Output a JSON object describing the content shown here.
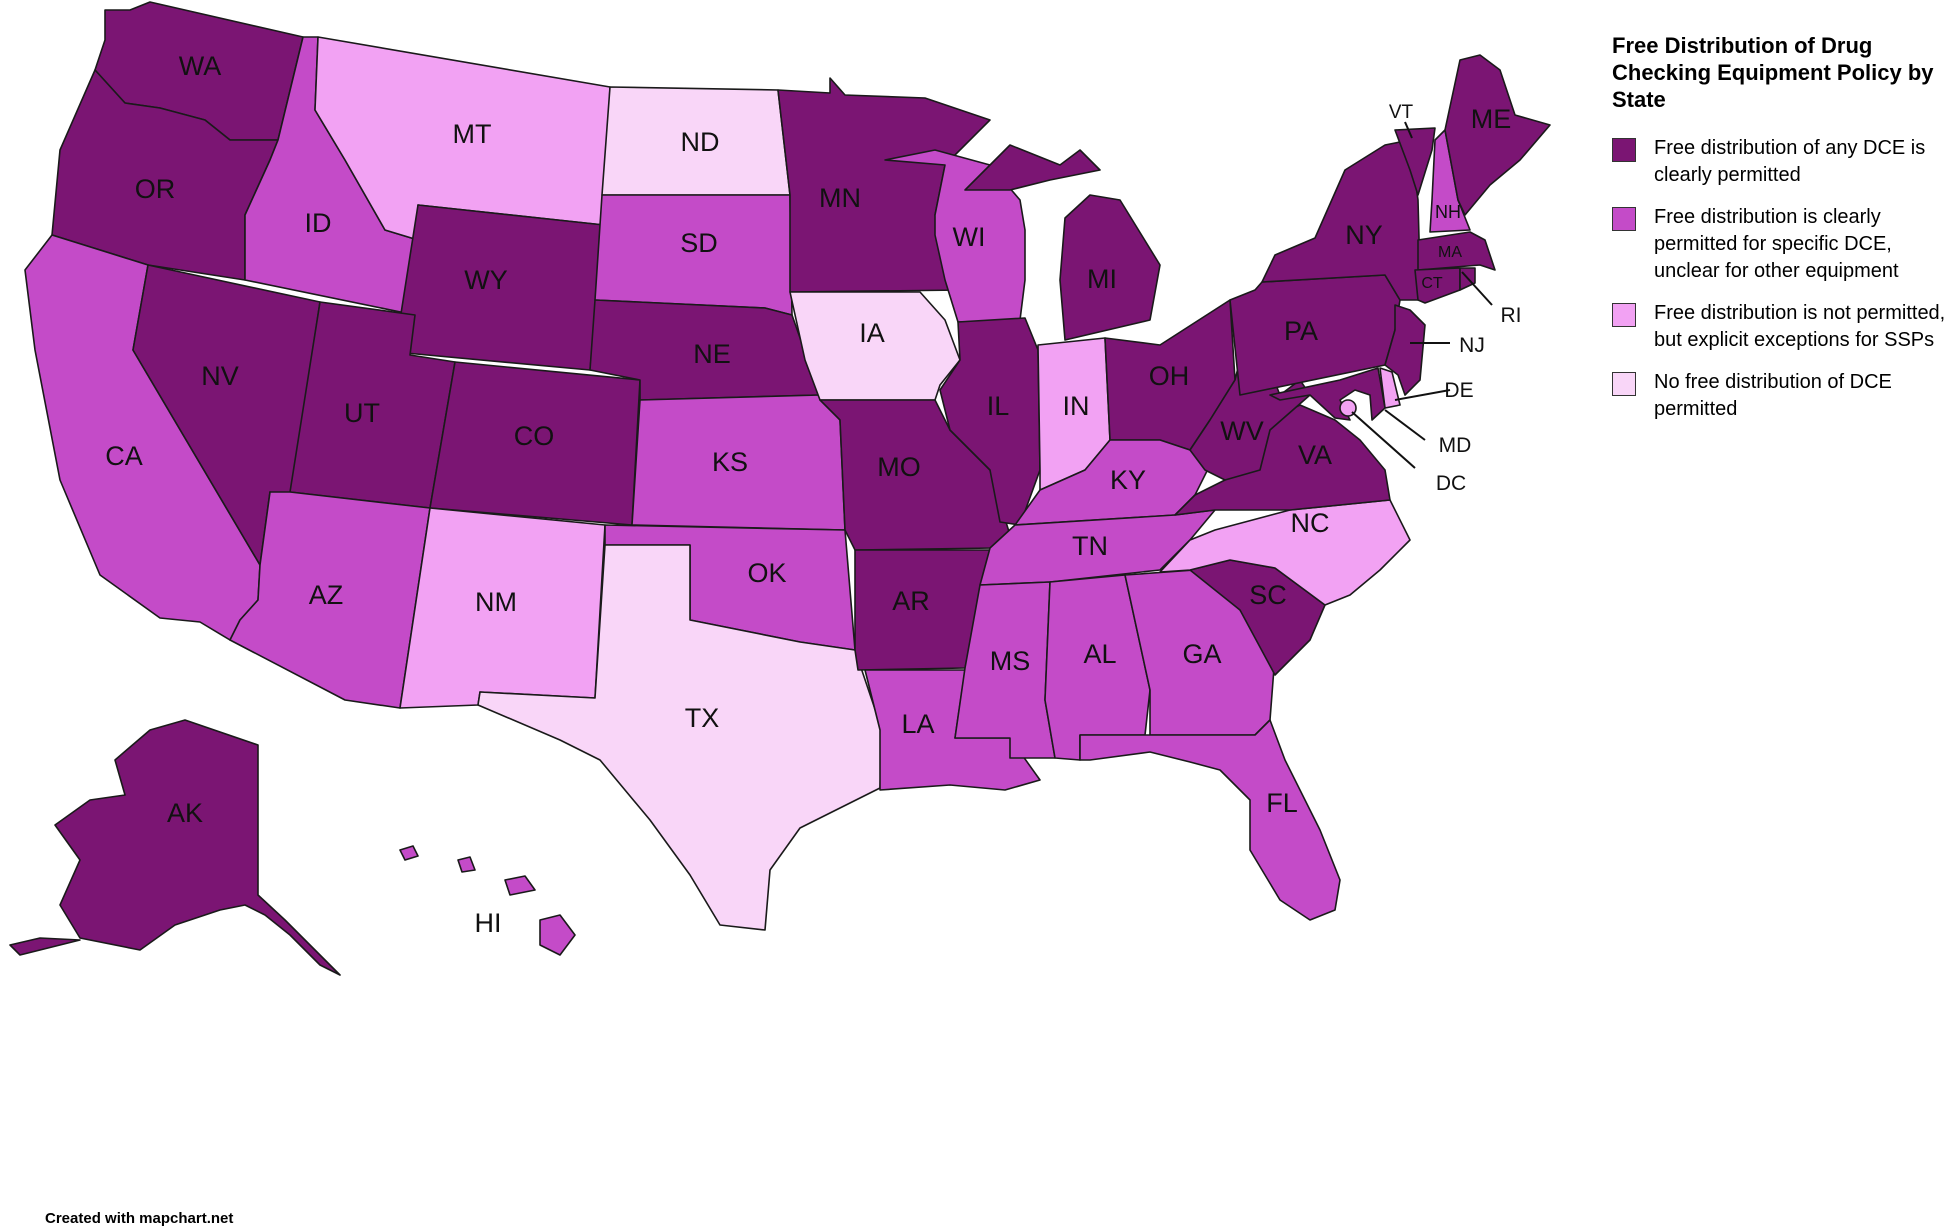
{
  "legend": {
    "title": "Free Distribution of Drug Checking Equipment Policy by State",
    "items": [
      {
        "key": "any",
        "label": "Free distribution of any DCE is clearly permitted",
        "color": "#7b1573"
      },
      {
        "key": "specific",
        "label": "Free distribution is clearly permitted for specific DCE, unclear for other equipment",
        "color": "#c44bc8"
      },
      {
        "key": "ssp",
        "label": "Free distribution is not permitted, but explicit exceptions for SSPs",
        "color": "#f2a2f3"
      },
      {
        "key": "none",
        "label": "No free distribution of DCE permitted",
        "color": "#f9d6f8"
      }
    ]
  },
  "states": [
    {
      "abbr": "WA",
      "category": "any"
    },
    {
      "abbr": "OR",
      "category": "any"
    },
    {
      "abbr": "CA",
      "category": "specific"
    },
    {
      "abbr": "ID",
      "category": "specific"
    },
    {
      "abbr": "NV",
      "category": "any"
    },
    {
      "abbr": "MT",
      "category": "ssp"
    },
    {
      "abbr": "WY",
      "category": "any"
    },
    {
      "abbr": "UT",
      "category": "any"
    },
    {
      "abbr": "CO",
      "category": "any"
    },
    {
      "abbr": "AZ",
      "category": "specific"
    },
    {
      "abbr": "NM",
      "category": "ssp"
    },
    {
      "abbr": "ND",
      "category": "none"
    },
    {
      "abbr": "SD",
      "category": "specific"
    },
    {
      "abbr": "NE",
      "category": "any"
    },
    {
      "abbr": "KS",
      "category": "specific"
    },
    {
      "abbr": "OK",
      "category": "specific"
    },
    {
      "abbr": "TX",
      "category": "none"
    },
    {
      "abbr": "MN",
      "category": "any"
    },
    {
      "abbr": "IA",
      "category": "none"
    },
    {
      "abbr": "MO",
      "category": "any"
    },
    {
      "abbr": "AR",
      "category": "any"
    },
    {
      "abbr": "LA",
      "category": "specific"
    },
    {
      "abbr": "WI",
      "category": "specific"
    },
    {
      "abbr": "IL",
      "category": "any"
    },
    {
      "abbr": "MI",
      "category": "any"
    },
    {
      "abbr": "IN",
      "category": "ssp"
    },
    {
      "abbr": "OH",
      "category": "any"
    },
    {
      "abbr": "KY",
      "category": "specific"
    },
    {
      "abbr": "TN",
      "category": "specific"
    },
    {
      "abbr": "MS",
      "category": "specific"
    },
    {
      "abbr": "AL",
      "category": "specific"
    },
    {
      "abbr": "GA",
      "category": "specific"
    },
    {
      "abbr": "FL",
      "category": "specific"
    },
    {
      "abbr": "SC",
      "category": "any"
    },
    {
      "abbr": "NC",
      "category": "ssp"
    },
    {
      "abbr": "VA",
      "category": "any"
    },
    {
      "abbr": "WV",
      "category": "any"
    },
    {
      "abbr": "PA",
      "category": "any"
    },
    {
      "abbr": "NY",
      "category": "any"
    },
    {
      "abbr": "VT",
      "category": "any"
    },
    {
      "abbr": "NH",
      "category": "specific"
    },
    {
      "abbr": "ME",
      "category": "any"
    },
    {
      "abbr": "MA",
      "category": "any"
    },
    {
      "abbr": "RI",
      "category": "any"
    },
    {
      "abbr": "CT",
      "category": "any"
    },
    {
      "abbr": "NJ",
      "category": "any"
    },
    {
      "abbr": "DE",
      "category": "ssp"
    },
    {
      "abbr": "MD",
      "category": "any"
    },
    {
      "abbr": "DC",
      "category": "ssp"
    },
    {
      "abbr": "AK",
      "category": "any"
    },
    {
      "abbr": "HI",
      "category": "specific"
    }
  ],
  "credit": "Created with mapchart.net"
}
